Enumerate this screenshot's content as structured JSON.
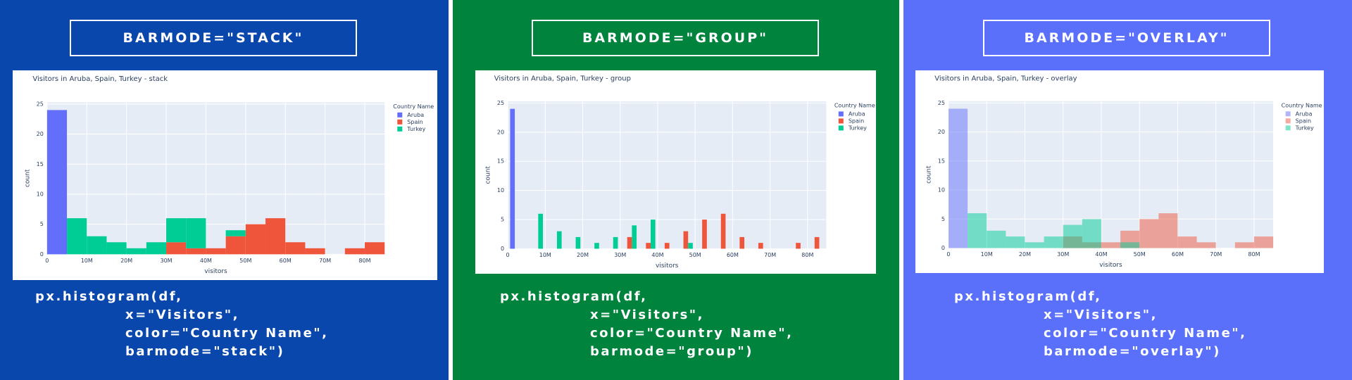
{
  "panels": [
    {
      "heading": "BARMODE=\"STACK\"",
      "code": [
        "px.histogram(df,",
        "x=\"Visitors\",",
        "color=\"Country Name\",",
        "barmode=\"stack\")"
      ]
    },
    {
      "heading": "BARMODE=\"GROUP\"",
      "code": [
        "px.histogram(df,",
        "x=\"Visitors\",",
        "color=\"Country Name\",",
        "barmode=\"group\")"
      ]
    },
    {
      "heading": "BARMODE=\"OVERLAY\"",
      "code": [
        "px.histogram(df,",
        "x=\"Visitors\",",
        "color=\"Country Name\",",
        "barmode=\"overlay\")"
      ]
    }
  ],
  "chart_data": [
    {
      "type": "histogram",
      "barmode": "stack",
      "title": "Visitors in Aruba, Spain, Turkey - stack",
      "xlabel": "visitors",
      "ylabel": "count",
      "legend_title": "Country Name",
      "grid": true,
      "bins": [
        0,
        5000000,
        10000000,
        15000000,
        20000000,
        25000000,
        30000000,
        35000000,
        40000000,
        45000000,
        50000000,
        55000000,
        60000000,
        65000000,
        70000000,
        75000000,
        80000000,
        85000000
      ],
      "series": [
        {
          "name": "Aruba",
          "color": "#636efa",
          "values": [
            24,
            0,
            0,
            0,
            0,
            0,
            0,
            0,
            0,
            0,
            0,
            0,
            0,
            0,
            0,
            0,
            0
          ]
        },
        {
          "name": "Spain",
          "color": "#ef553b",
          "values": [
            0,
            0,
            0,
            0,
            0,
            0,
            2,
            1,
            1,
            3,
            5,
            6,
            2,
            1,
            0,
            1,
            2
          ]
        },
        {
          "name": "Turkey",
          "color": "#00cc96",
          "values": [
            0,
            6,
            3,
            2,
            1,
            2,
            4,
            5,
            0,
            1,
            0,
            0,
            0,
            0,
            0,
            0,
            0
          ]
        }
      ],
      "xlim": [
        0,
        85000000
      ],
      "ylim": [
        0,
        25.3
      ],
      "xticks": [
        0,
        {
          "value": 10000000,
          "label": "10M"
        },
        {
          "value": 20000000,
          "label": "20M"
        },
        {
          "value": 30000000,
          "label": "30M"
        },
        {
          "value": 40000000,
          "label": "40M"
        },
        {
          "value": 50000000,
          "label": "50M"
        },
        {
          "value": 60000000,
          "label": "60M"
        },
        {
          "value": 70000000,
          "label": "70M"
        },
        {
          "value": 80000000,
          "label": "80M"
        }
      ],
      "yticks": [
        0,
        5,
        10,
        15,
        20,
        25
      ]
    },
    {
      "type": "histogram",
      "barmode": "group",
      "title": "Visitors in Aruba, Spain, Turkey - group",
      "xlabel": "visitors",
      "ylabel": "count",
      "legend_title": "Country Name",
      "grid": true,
      "bins": [
        0,
        5000000,
        10000000,
        15000000,
        20000000,
        25000000,
        30000000,
        35000000,
        40000000,
        45000000,
        50000000,
        55000000,
        60000000,
        65000000,
        70000000,
        75000000,
        80000000,
        85000000
      ],
      "series": [
        {
          "name": "Aruba",
          "color": "#636efa",
          "values": [
            24,
            0,
            0,
            0,
            0,
            0,
            0,
            0,
            0,
            0,
            0,
            0,
            0,
            0,
            0,
            0,
            0
          ]
        },
        {
          "name": "Spain",
          "color": "#ef553b",
          "values": [
            0,
            0,
            0,
            0,
            0,
            0,
            2,
            1,
            1,
            3,
            5,
            6,
            2,
            1,
            0,
            1,
            2
          ]
        },
        {
          "name": "Turkey",
          "color": "#00cc96",
          "values": [
            0,
            6,
            3,
            2,
            1,
            2,
            4,
            5,
            0,
            1,
            0,
            0,
            0,
            0,
            0,
            0,
            0
          ]
        }
      ],
      "xlim": [
        0,
        85000000
      ],
      "ylim": [
        0,
        25.3
      ],
      "xticks": [
        0,
        {
          "value": 10000000,
          "label": "10M"
        },
        {
          "value": 20000000,
          "label": "20M"
        },
        {
          "value": 30000000,
          "label": "30M"
        },
        {
          "value": 40000000,
          "label": "40M"
        },
        {
          "value": 50000000,
          "label": "50M"
        },
        {
          "value": 60000000,
          "label": "60M"
        },
        {
          "value": 70000000,
          "label": "70M"
        },
        {
          "value": 80000000,
          "label": "80M"
        }
      ],
      "yticks": [
        0,
        5,
        10,
        15,
        20,
        25
      ]
    },
    {
      "type": "histogram",
      "barmode": "overlay",
      "opacity": 0.5,
      "title": "Visitors in Aruba, Spain, Turkey - overlay",
      "xlabel": "visitors",
      "ylabel": "count",
      "legend_title": "Country Name",
      "grid": true,
      "bins": [
        0,
        5000000,
        10000000,
        15000000,
        20000000,
        25000000,
        30000000,
        35000000,
        40000000,
        45000000,
        50000000,
        55000000,
        60000000,
        65000000,
        70000000,
        75000000,
        80000000,
        85000000
      ],
      "series": [
        {
          "name": "Aruba",
          "color": "#636efa",
          "values": [
            24,
            0,
            0,
            0,
            0,
            0,
            0,
            0,
            0,
            0,
            0,
            0,
            0,
            0,
            0,
            0,
            0
          ]
        },
        {
          "name": "Spain",
          "color": "#ef553b",
          "values": [
            0,
            0,
            0,
            0,
            0,
            0,
            2,
            1,
            1,
            3,
            5,
            6,
            2,
            1,
            0,
            1,
            2
          ]
        },
        {
          "name": "Turkey",
          "color": "#00cc96",
          "values": [
            0,
            6,
            3,
            2,
            1,
            2,
            4,
            5,
            0,
            1,
            0,
            0,
            0,
            0,
            0,
            0,
            0
          ]
        }
      ],
      "xlim": [
        0,
        85000000
      ],
      "ylim": [
        0,
        25.3
      ],
      "xticks": [
        0,
        {
          "value": 10000000,
          "label": "10M"
        },
        {
          "value": 20000000,
          "label": "20M"
        },
        {
          "value": 30000000,
          "label": "30M"
        },
        {
          "value": 40000000,
          "label": "40M"
        },
        {
          "value": 50000000,
          "label": "50M"
        },
        {
          "value": 60000000,
          "label": "60M"
        },
        {
          "value": 70000000,
          "label": "70M"
        },
        {
          "value": 80000000,
          "label": "80M"
        }
      ],
      "yticks": [
        0,
        5,
        10,
        15,
        20,
        25
      ]
    }
  ]
}
